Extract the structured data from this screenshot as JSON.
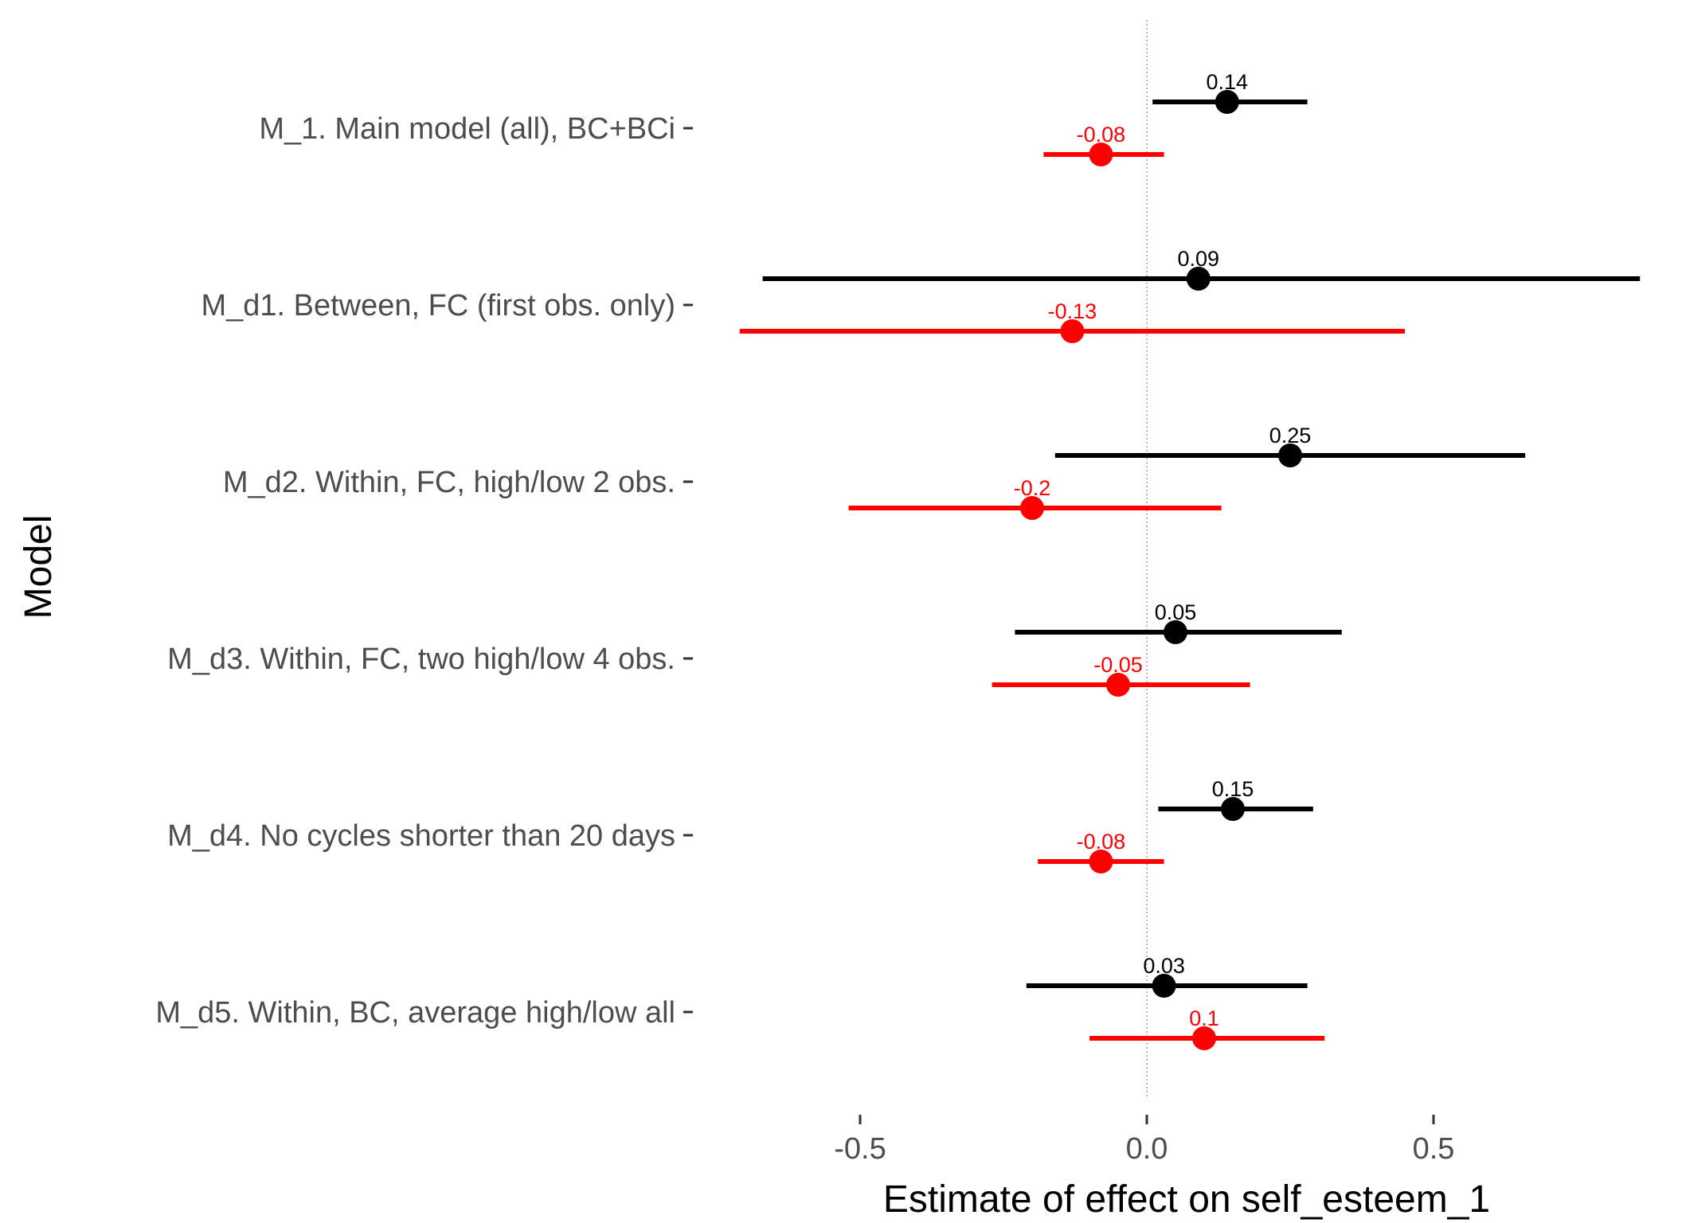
{
  "chart_data": {
    "type": "scatter",
    "title": "",
    "xlabel": "Estimate of effect on self_esteem_1",
    "ylabel": "Model",
    "xlim": [
      -0.75,
      0.88
    ],
    "xticks": [
      -0.5,
      0.0,
      0.5
    ],
    "xtick_labels": [
      "-0.5",
      "0.0",
      "0.5"
    ],
    "reference_line_x": 0,
    "grid": false,
    "legend": "none",
    "categories": [
      "M_1. Main model (all), BC+BCi",
      "M_d1. Between, FC (first obs. only)",
      "M_d2. Within, FC, high/low 2 obs.",
      "M_d3. Within, FC, two high/low 4 obs.",
      "M_d4. No cycles shorter than 20 days",
      "M_d5. Within, BC, average high/low all"
    ],
    "series": [
      {
        "color": "#000000",
        "estimates": [
          0.14,
          0.09,
          0.25,
          0.05,
          0.15,
          0.03
        ],
        "lower": [
          0.01,
          -0.67,
          -0.16,
          -0.23,
          0.02,
          -0.21
        ],
        "upper": [
          0.28,
          0.86,
          0.66,
          0.34,
          0.29,
          0.28
        ],
        "labels": [
          "0.14",
          "0.09",
          "0.25",
          "0.05",
          "0.15",
          "0.03"
        ]
      },
      {
        "color": "#ff0000",
        "estimates": [
          -0.08,
          -0.13,
          -0.2,
          -0.05,
          -0.08,
          0.1
        ],
        "lower": [
          -0.18,
          -0.71,
          -0.52,
          -0.27,
          -0.19,
          -0.1
        ],
        "upper": [
          0.03,
          0.45,
          0.13,
          0.18,
          0.03,
          0.31
        ],
        "labels": [
          "-0.08",
          "-0.13",
          "-0.2",
          "-0.05",
          "-0.08",
          "0.1"
        ]
      }
    ]
  }
}
